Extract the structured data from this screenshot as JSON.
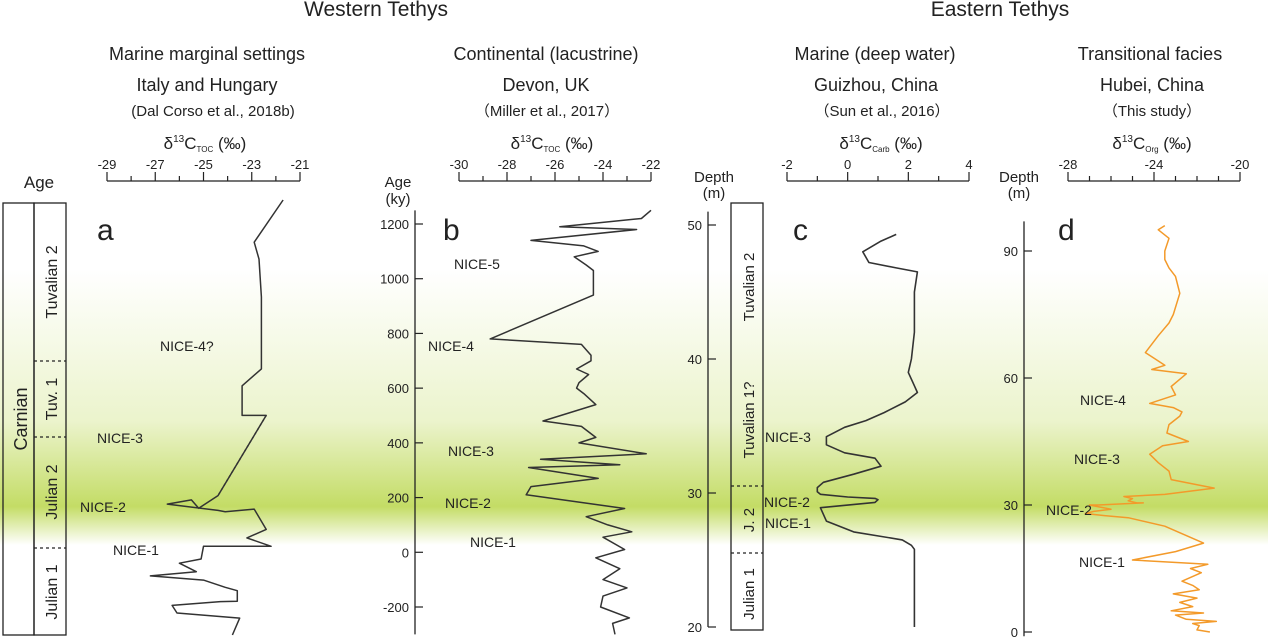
{
  "regions": {
    "west": "Western Tethys",
    "east": "Eastern Tethys"
  },
  "colors": {
    "line": "#333333",
    "orange": "#f39a2a",
    "band": "#b9d64a"
  },
  "age_column": {
    "label": "Age",
    "stage": "Carnian",
    "substages": [
      {
        "id": "tuv2",
        "label": "Tuvalian 2"
      },
      {
        "id": "tuv1",
        "label": "Tuv. 1"
      },
      {
        "id": "jul2",
        "label": "Julian 2"
      },
      {
        "id": "jul1",
        "label": "Julian 1"
      }
    ]
  },
  "chart_data": [
    {
      "id": "a",
      "letter": "a",
      "type": "line",
      "title": "Marine marginal settings",
      "location": "Italy and Hungary",
      "reference": "(Dal Corso et al., 2018b)",
      "xlabel": "δ13C TOC (‰)",
      "xlim": [
        -29,
        -21
      ],
      "x_ticks": [
        "-29",
        "-27",
        "-25",
        "-23",
        "-21"
      ],
      "x": [
        -21.7,
        -22.9,
        -22.7,
        -22.6,
        -22.6,
        -23.4,
        -23.4,
        -22.4,
        -24.4,
        -25.2,
        -25.5,
        -26.5,
        -24.4,
        -24.1,
        -22.9,
        -22.4,
        -23.2,
        -22.2,
        -25.0,
        -25.1,
        -26.0,
        -25.3,
        -27.2,
        -25.0,
        -24.1,
        -23.6,
        -23.6,
        -24.3,
        -26.3,
        -26.1,
        -23.5,
        -23.8
      ],
      "depth": [
        100,
        90,
        86,
        77,
        60,
        56,
        49,
        49,
        30,
        27,
        29,
        28,
        26.5,
        26.2,
        26.8,
        22,
        20,
        18,
        18,
        15,
        14,
        12,
        11,
        10,
        8.3,
        7.5,
        5,
        4.9,
        4.0,
        2.2,
        1.0,
        -3
      ],
      "missing_segment": {
        "x": [
          -22.4,
          -24.4
        ],
        "depth": [
          49,
          30
        ]
      },
      "annotations": [
        "NICE-4?",
        "NICE-3",
        "NICE-2",
        "NICE-1"
      ]
    },
    {
      "id": "b",
      "letter": "b",
      "type": "line",
      "title": "Continental (lacustrine)",
      "location": "Devon, UK",
      "reference": "（Miller et al., 2017）",
      "xlabel": "δ13C TOC (‰)",
      "xlim": [
        -30,
        -22
      ],
      "x_ticks": [
        "-30",
        "-28",
        "-26",
        "-24",
        "-22"
      ],
      "y_axis_label": [
        "Age",
        "(ky)"
      ],
      "ylim": [
        -300,
        1250
      ],
      "y_ticks": [
        "-200",
        "0",
        "200",
        "400",
        "600",
        "800",
        "1000",
        "1200"
      ],
      "x": [
        -22.0,
        -22.4,
        -25.8,
        -22.6,
        -27.0,
        -24.8,
        -24.2,
        -25.2,
        -24.7,
        -24.4,
        -24.4,
        -24.4,
        -28.7,
        -24.9,
        -24.5,
        -24.5,
        -25.1,
        -24.6,
        -25.0,
        -25.1,
        -24.8,
        -24.3,
        -26.5,
        -24.9,
        -24.3,
        -25.0,
        -22.2,
        -26.6,
        -23.3,
        -27.1,
        -24.2,
        -27.0,
        -27.2,
        -23.1,
        -24.7,
        -23.8,
        -22.8,
        -24.0,
        -23.1,
        -24.3,
        -23.3,
        -24.0,
        -23.0,
        -24.0,
        -24.1,
        -22.9,
        -23.6,
        -23.5
      ],
      "y": [
        1250,
        1220,
        1190,
        1180,
        1140,
        1120,
        1100,
        1080,
        1050,
        1030,
        1000,
        940,
        780,
        760,
        720,
        700,
        670,
        650,
        620,
        600,
        580,
        540,
        480,
        460,
        420,
        400,
        360,
        340,
        320,
        310,
        270,
        240,
        210,
        160,
        130,
        100,
        75,
        55,
        10,
        -20,
        -60,
        -100,
        -130,
        -160,
        -200,
        -240,
        -260,
        -300
      ],
      "annotations": [
        "NICE-5",
        "NICE-4",
        "NICE-3",
        "NICE-2",
        "NICE-1"
      ]
    },
    {
      "id": "c",
      "letter": "c",
      "type": "line",
      "title": "Marine (deep water)",
      "location": "Guizhou, China",
      "reference": "（Sun et al., 2016）",
      "xlabel": "δ13C Carb (‰)",
      "xlim": [
        -2,
        4
      ],
      "x_ticks": [
        "-2",
        "0",
        "2",
        "4"
      ],
      "y_axis_label": [
        "Depth",
        "(m)"
      ],
      "ylim": [
        20,
        51
      ],
      "y_ticks": [
        "20",
        "30",
        "40",
        "50"
      ],
      "x": [
        1.6,
        1.1,
        0.5,
        0.7,
        1.6,
        2.3,
        2.2,
        2.2,
        2.1,
        2.0,
        2.2,
        2.3,
        1.9,
        1.2,
        0.6,
        -0.1,
        -0.7,
        -0.7,
        -0.1,
        0.9,
        1.1,
        0.2,
        -0.8,
        -1.0,
        -1.0,
        -0.9,
        0.0,
        0.9,
        1.0,
        0.9,
        -0.9,
        -0.7,
        0.2,
        1.8,
        2.1,
        2.2,
        2.2
      ],
      "y": [
        49.3,
        48.8,
        48.0,
        47.2,
        46.8,
        46.5,
        45.0,
        42.0,
        40.0,
        39.0,
        38.0,
        37.5,
        36.8,
        36.0,
        35.4,
        34.9,
        34.2,
        33.6,
        33.0,
        32.6,
        32.0,
        31.4,
        30.8,
        30.4,
        30.1,
        29.9,
        29.7,
        29.6,
        29.5,
        29.3,
        28.9,
        27.9,
        27.1,
        26.5,
        26.1,
        25.8,
        20.0
      ],
      "column": {
        "upper": "Tuvalian 2",
        "mid": "Tuvalian 1?",
        "low": "J. 2",
        "bottom": "Julian 1"
      },
      "annotations": [
        "NICE-3",
        "NICE-2",
        "NICE-1"
      ]
    },
    {
      "id": "d",
      "letter": "d",
      "type": "line",
      "title": "Transitional facies",
      "location": "Hubei, China",
      "reference": "（This study）",
      "xlabel": "δ13C Org (‰)",
      "xlim": [
        -28,
        -20
      ],
      "x_ticks": [
        "-28",
        "-24",
        "-20"
      ],
      "y_axis_label": [
        "Depth",
        "(m)"
      ],
      "ylim": [
        -1,
        97
      ],
      "y_ticks": [
        "0",
        "30",
        "60",
        "90"
      ],
      "x": [
        -23.5,
        -23.8,
        -23.3,
        -23.5,
        -23.5,
        -23.3,
        -23.0,
        -22.8,
        -23.1,
        -23.3,
        -23.8,
        -24.4,
        -24.1,
        -23.5,
        -24.1,
        -22.5,
        -23.2,
        -23.0,
        -24.2,
        -23.1,
        -22.7,
        -22.8,
        -23.3,
        -23.4,
        -22.4,
        -23.6,
        -24.2,
        -23.8,
        -23.3,
        -23.2,
        -21.2,
        -23.5,
        -25.4,
        -25.0,
        -25.2,
        -24.8,
        -24.5,
        -26.6,
        -27.0,
        -26.5,
        -26.0,
        -26.8,
        -27.2,
        -26.3,
        -25.2,
        -23.5,
        -21.7,
        -23.0,
        -25.0,
        -21.5,
        -22.3,
        -21.8,
        -22.7,
        -22.2,
        -21.9,
        -23.1,
        -22.0,
        -22.8,
        -22.2,
        -23.2,
        -21.7,
        -23.0,
        -22.5,
        -21.1,
        -22.2,
        -21.9,
        -22.0,
        -21.4
      ],
      "y": [
        96,
        95,
        93,
        90,
        88,
        86,
        84,
        80,
        75,
        73,
        70,
        66,
        65,
        63,
        62,
        61,
        58,
        56,
        54,
        53,
        52,
        51,
        49,
        47,
        45,
        44,
        42,
        40,
        38,
        36,
        34,
        32.5,
        32,
        31.5,
        31,
        30.5,
        30.5,
        30,
        30,
        29.5,
        29,
        28.5,
        28,
        27.5,
        27,
        25,
        21,
        19,
        17,
        16,
        15,
        14,
        12,
        11,
        10,
        9,
        8,
        7,
        6,
        5,
        4.5,
        4,
        3,
        2.5,
        2,
        1.5,
        0.5,
        0
      ],
      "annotations": [
        "NICE-4",
        "NICE-3",
        "NICE-2",
        "NICE-1"
      ]
    }
  ]
}
